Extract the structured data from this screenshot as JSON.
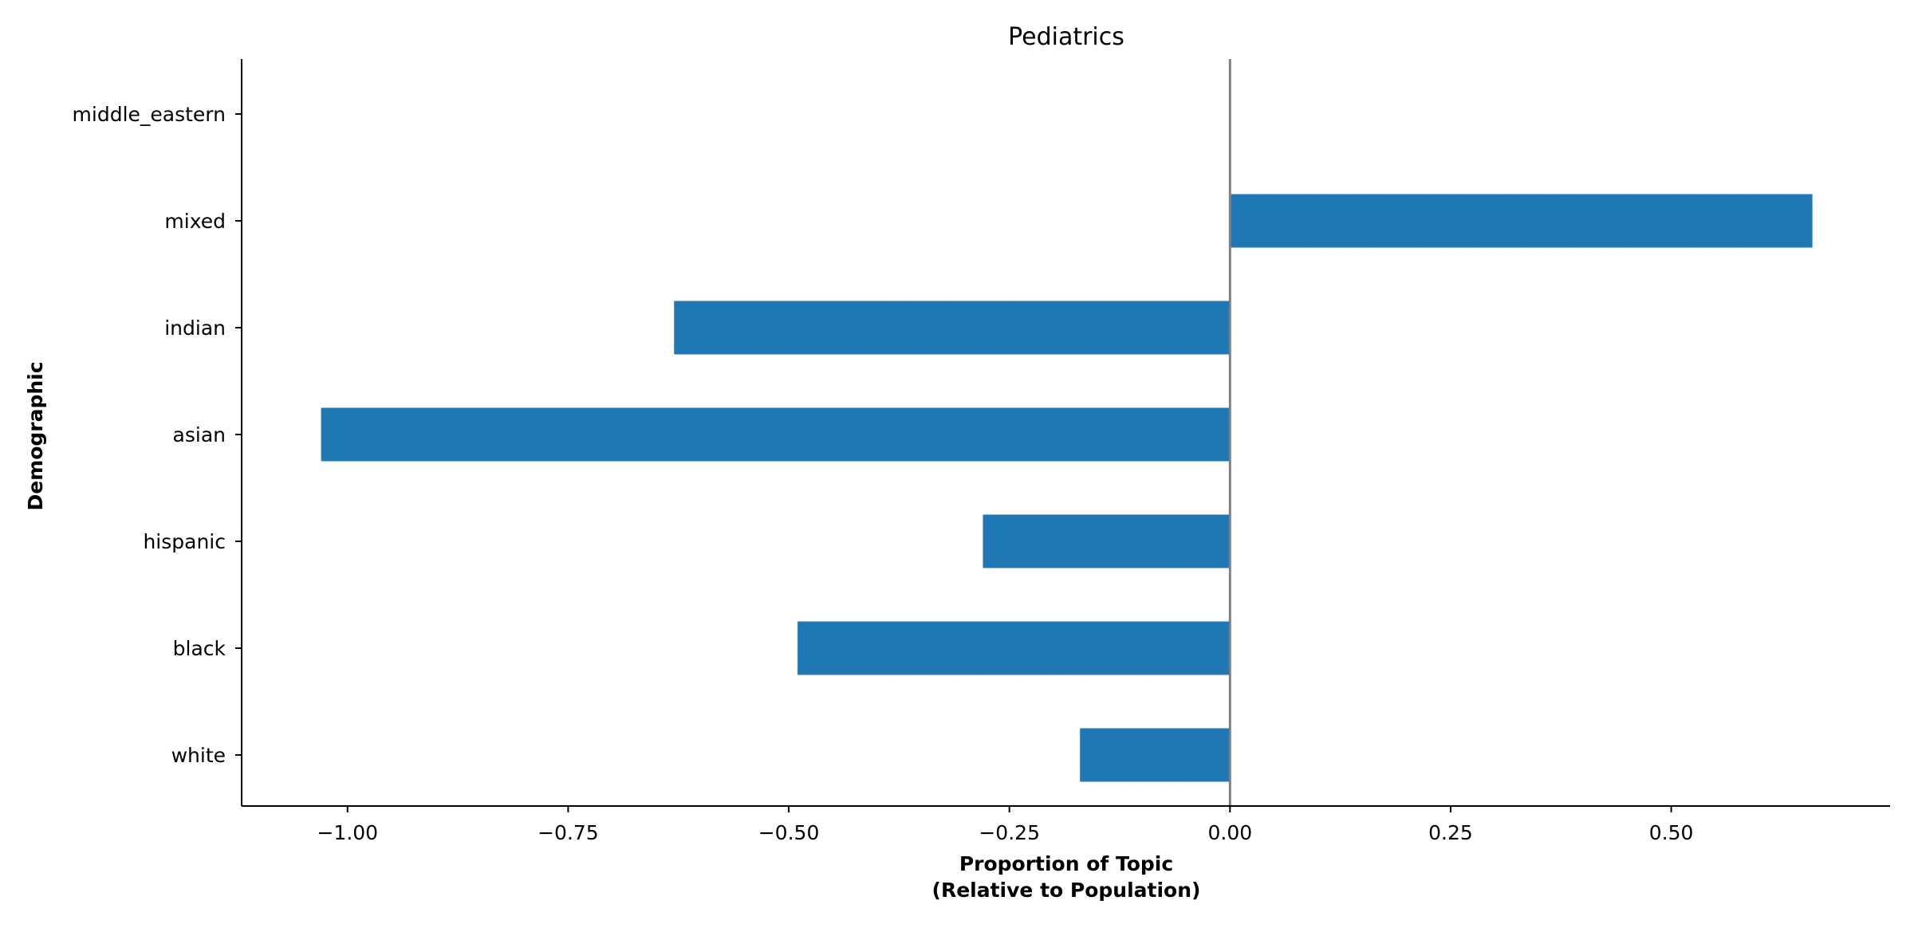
{
  "chart_data": {
    "type": "bar",
    "orientation": "horizontal",
    "title": "Pediatrics",
    "xlabel_lines": [
      "Proportion of Topic",
      "(Relative to Population)"
    ],
    "ylabel": "Demographic",
    "categories": [
      "white",
      "black",
      "hispanic",
      "asian",
      "indian",
      "mixed",
      "middle_eastern"
    ],
    "values": [
      -0.17,
      -0.49,
      -0.28,
      -1.03,
      -0.63,
      0.66,
      0.0
    ],
    "xlim": [
      -1.12,
      0.748
    ],
    "xticks": [
      -1.0,
      -0.75,
      -0.5,
      -0.25,
      0.0,
      0.25,
      0.5
    ],
    "xtick_labels": [
      "−1.00",
      "−0.75",
      "−0.50",
      "−0.25",
      "0.00",
      "0.25",
      "0.50"
    ],
    "reference_line": 0.0,
    "grid": false,
    "legend": "none",
    "colors": {
      "bar": "#1f77b4",
      "reference_line": "#808080",
      "axis": "#000000"
    }
  }
}
